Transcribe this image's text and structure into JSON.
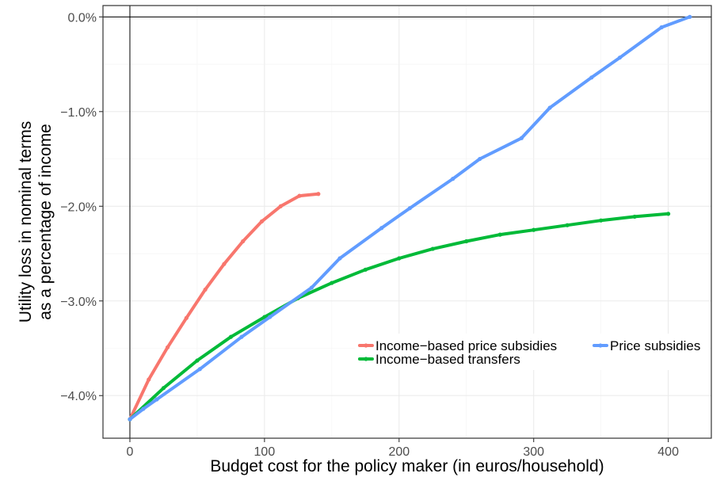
{
  "chart_data": {
    "type": "line",
    "xlabel": "Budget cost for the policy maker (in euros/household)",
    "ylabel": [
      "Utility loss in nominal terms",
      "as a percentage of income"
    ],
    "xlim": [
      -20,
      432
    ],
    "ylim": [
      -4.45,
      0.12
    ],
    "x_ticks": [
      0,
      100,
      200,
      300,
      400
    ],
    "x_tick_labels": [
      "0",
      "100",
      "200",
      "300",
      "400"
    ],
    "y_ticks": [
      0,
      -1,
      -2,
      -3,
      -4
    ],
    "y_tick_labels": [
      "0.0%",
      "−1.0%",
      "−2.0%",
      "−3.0%",
      "−4.0%"
    ],
    "grid": true,
    "reference_lines": {
      "x": 0,
      "y": 0
    },
    "legend_position": "bottom-right",
    "series": [
      {
        "name": "Income−based price subsidies",
        "color": "#F8766D",
        "x": [
          0,
          14,
          28,
          42,
          56,
          70,
          84,
          98,
          112,
          126,
          140
        ],
        "y": [
          -4.25,
          -3.83,
          -3.49,
          -3.18,
          -2.88,
          -2.61,
          -2.37,
          -2.16,
          -2.0,
          -1.89,
          -1.87
        ]
      },
      {
        "name": "Income−based transfers",
        "color": "#00BA38",
        "x": [
          0,
          25,
          50,
          75,
          100,
          125,
          150,
          175,
          200,
          225,
          250,
          275,
          300,
          325,
          350,
          375,
          400
        ],
        "y": [
          -4.25,
          -3.92,
          -3.63,
          -3.38,
          -3.17,
          -2.97,
          -2.81,
          -2.67,
          -2.55,
          -2.45,
          -2.37,
          -2.3,
          -2.25,
          -2.2,
          -2.15,
          -2.11,
          -2.08
        ]
      },
      {
        "name": "Price subsidies",
        "color": "#619CFF",
        "x": [
          0,
          10,
          20,
          52,
          83,
          104,
          135,
          156,
          187,
          208,
          240,
          260,
          291,
          312,
          343,
          364,
          395,
          416
        ],
        "y": [
          -4.25,
          -4.14,
          -4.04,
          -3.72,
          -3.38,
          -3.17,
          -2.86,
          -2.55,
          -2.23,
          -2.02,
          -1.71,
          -1.5,
          -1.28,
          -0.96,
          -0.64,
          -0.43,
          -0.11,
          0.0
        ]
      }
    ]
  }
}
